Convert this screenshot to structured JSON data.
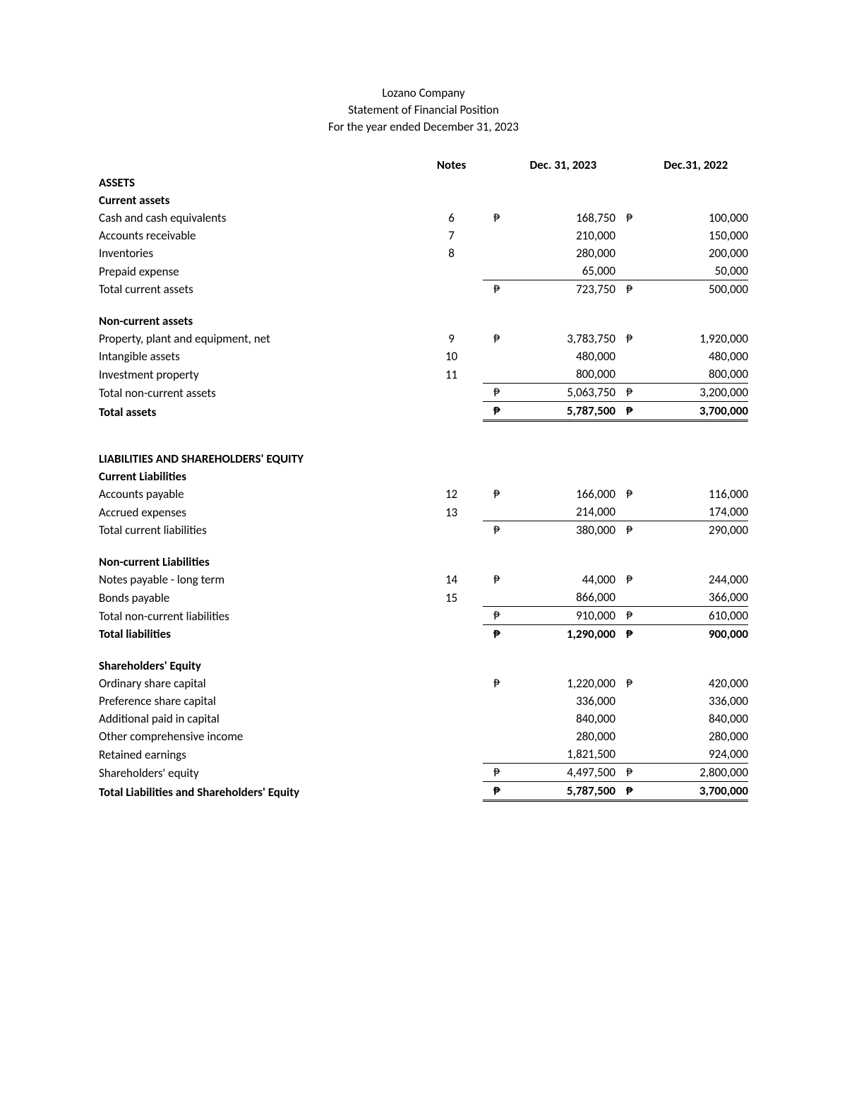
{
  "header": {
    "line1": "Lozano Company",
    "line2": "Statement of Financial Position",
    "line3": "For the year ended December 31, 2023"
  },
  "columns": {
    "notes": "Notes",
    "date1": "Dec. 31, 2023",
    "date2": "Dec.31, 2022"
  },
  "currency": "₱",
  "sections": {
    "assets_header": "ASSETS",
    "current_assets_header": "Current assets",
    "non_current_assets_header": "Non-current assets",
    "liabilities_equity_header": "LIABILITIES AND SHAREHOLDERS' EQUITY",
    "current_liab_header": "Current Liabilities",
    "non_current_liab_header": "Non-current Liabilities",
    "equity_header": "Shareholders' Equity"
  },
  "rows": {
    "cash": {
      "label": "Cash and cash equivalents",
      "note": "6",
      "sym1": "₱",
      "v1": "168,750",
      "sym2": "₱",
      "v2": "100,000"
    },
    "ar": {
      "label": "Accounts receivable",
      "note": "7",
      "sym1": "",
      "v1": "210,000",
      "sym2": "",
      "v2": "150,000"
    },
    "inv": {
      "label": "Inventories",
      "note": "8",
      "sym1": "",
      "v1": "280,000",
      "sym2": "",
      "v2": "200,000"
    },
    "prepaid": {
      "label": "Prepaid expense",
      "note": "",
      "sym1": "",
      "v1": "65,000",
      "sym2": "",
      "v2": "50,000"
    },
    "total_ca": {
      "label": "Total current assets",
      "note": "",
      "sym1": "₱",
      "v1": "723,750",
      "sym2": "₱",
      "v2": "500,000"
    },
    "ppe": {
      "label": "Property, plant and equipment, net",
      "note": "9",
      "sym1": "₱",
      "v1": "3,783,750",
      "sym2": "₱",
      "v2": "1,920,000"
    },
    "intangible": {
      "label": "Intangible assets",
      "note": "10",
      "sym1": "",
      "v1": "480,000",
      "sym2": "",
      "v2": "480,000"
    },
    "investprop": {
      "label": "Investment property",
      "note": "11",
      "sym1": "",
      "v1": "800,000",
      "sym2": "",
      "v2": "800,000"
    },
    "total_nca": {
      "label": "Total non-current assets",
      "note": "",
      "sym1": "₱",
      "v1": "5,063,750",
      "sym2": "₱",
      "v2": "3,200,000"
    },
    "total_assets": {
      "label": "Total assets",
      "note": "",
      "sym1": "₱",
      "v1": "5,787,500",
      "sym2": "₱",
      "v2": "3,700,000"
    },
    "ap": {
      "label": "Accounts payable",
      "note": "12",
      "sym1": "₱",
      "v1": "166,000",
      "sym2": "₱",
      "v2": "116,000"
    },
    "accrued": {
      "label": "Accrued expenses",
      "note": "13",
      "sym1": "",
      "v1": "214,000",
      "sym2": "",
      "v2": "174,000"
    },
    "total_cl": {
      "label": "Total current liabilities",
      "note": "",
      "sym1": "₱",
      "v1": "380,000",
      "sym2": "₱",
      "v2": "290,000"
    },
    "notes_lt": {
      "label": "Notes payable - long term",
      "note": "14",
      "sym1": "₱",
      "v1": "44,000",
      "sym2": "₱",
      "v2": "244,000"
    },
    "bonds": {
      "label": "Bonds payable",
      "note": "15",
      "sym1": "",
      "v1": "866,000",
      "sym2": "",
      "v2": "366,000"
    },
    "total_ncl": {
      "label": "Total non-current liabilities",
      "note": "",
      "sym1": "₱",
      "v1": "910,000",
      "sym2": "₱",
      "v2": "610,000"
    },
    "total_liab": {
      "label": "Total liabilities",
      "note": "",
      "sym1": "₱",
      "v1": "1,290,000",
      "sym2": "₱",
      "v2": "900,000"
    },
    "ord_share": {
      "label": "Ordinary share capital",
      "note": "",
      "sym1": "₱",
      "v1": "1,220,000",
      "sym2": "₱",
      "v2": "420,000"
    },
    "pref_share": {
      "label": "Preference share capital",
      "note": "",
      "sym1": "",
      "v1": "336,000",
      "sym2": "",
      "v2": "336,000"
    },
    "addl_paid": {
      "label": "Additional paid in capital",
      "note": "",
      "sym1": "",
      "v1": "840,000",
      "sym2": "",
      "v2": "840,000"
    },
    "oci": {
      "label": "Other comprehensive income",
      "note": "",
      "sym1": "",
      "v1": "280,000",
      "sym2": "",
      "v2": "280,000"
    },
    "retained": {
      "label": "Retained earnings",
      "note": "",
      "sym1": "",
      "v1": "1,821,500",
      "sym2": "",
      "v2": "924,000"
    },
    "total_equity": {
      "label": "Shareholders' equity",
      "note": "",
      "sym1": "₱",
      "v1": "4,497,500",
      "sym2": "₱",
      "v2": "2,800,000"
    },
    "total_liab_eq": {
      "label": "Total Liabilities and Shareholders' Equity",
      "note": "",
      "sym1": "₱",
      "v1": "5,787,500",
      "sym2": "₱",
      "v2": "3,700,000"
    }
  },
  "style": {
    "font_family": "Calibri",
    "body_fontsize_pt": 12.5,
    "text_color": "#000000",
    "background_color": "#ffffff",
    "border_color": "#000000"
  }
}
